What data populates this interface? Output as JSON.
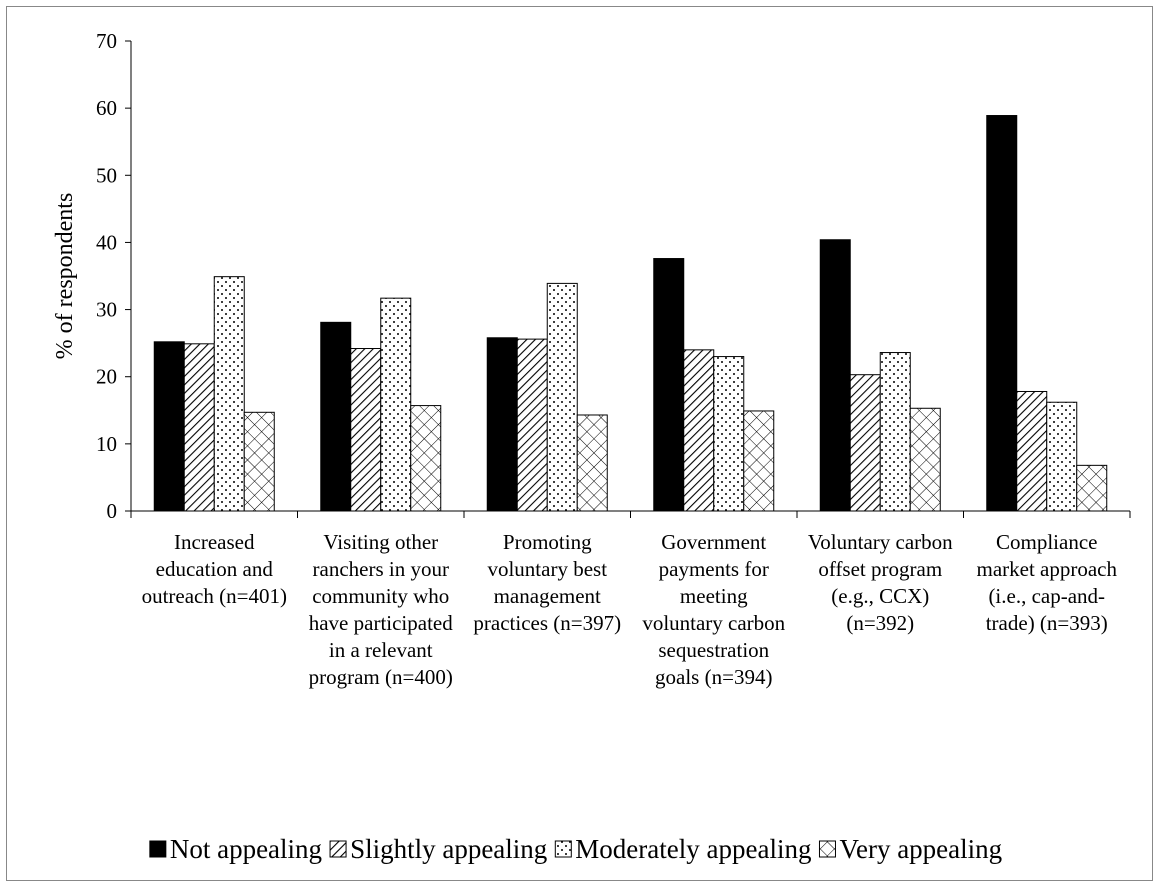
{
  "chart_data": {
    "type": "bar",
    "ylabel": "% of respondents",
    "categories": [
      "Increased education and outreach (n=401)",
      "Visiting other ranchers in your community who have participated in a relevant program (n=400)",
      "Promoting voluntary best management practices (n=397)",
      "Government payments for meeting voluntary carbon sequestration goals (n=394)",
      "Voluntary carbon offset program (e.g., CCX) (n=392)",
      "Compliance market approach (i.e., cap-and-trade) (n=393)"
    ],
    "series": [
      {
        "name": "Not appealing",
        "color": "#000000",
        "pattern": "solid",
        "values": [
          25.2,
          28.1,
          25.8,
          37.6,
          40.4,
          58.9
        ]
      },
      {
        "name": "Slightly appealing",
        "color": "#000000",
        "pattern": "hatch",
        "values": [
          24.9,
          24.2,
          25.6,
          24.0,
          20.3,
          17.8
        ]
      },
      {
        "name": "Moderately appealing",
        "color": "#000000",
        "pattern": "dots",
        "values": [
          34.9,
          31.7,
          33.9,
          23.0,
          23.6,
          16.2
        ]
      },
      {
        "name": "Very appealing",
        "color": "#000000",
        "pattern": "crosshatch",
        "values": [
          14.7,
          15.7,
          14.3,
          14.9,
          15.3,
          6.8
        ]
      }
    ],
    "ylim": [
      0,
      70
    ],
    "yticks": [
      0,
      10,
      20,
      30,
      40,
      50,
      60,
      70
    ],
    "grid": false,
    "legend": "bottom"
  }
}
